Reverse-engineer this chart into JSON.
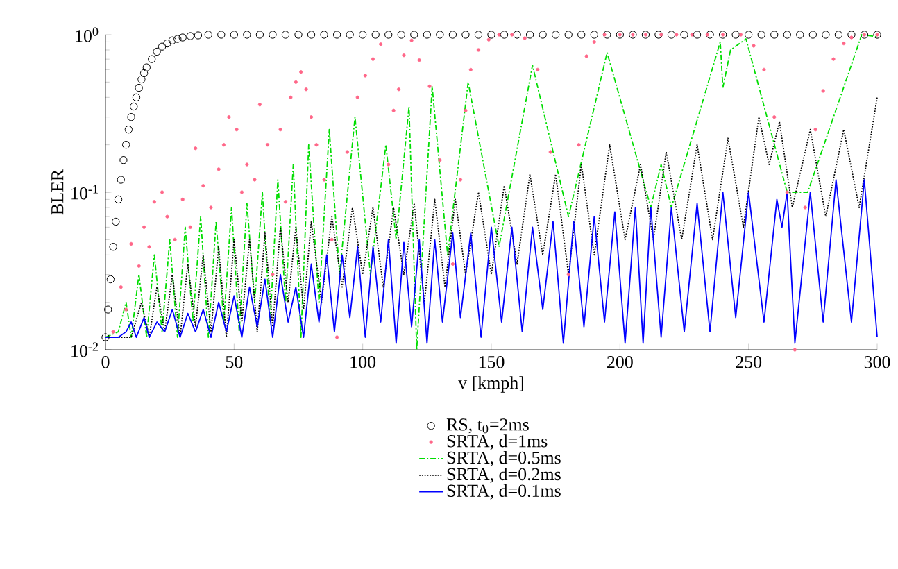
{
  "chart_data": {
    "type": "line",
    "xlabel": "v [kmph]",
    "ylabel": "BLER",
    "log": "y",
    "legend": "bottom",
    "xlim": [
      0,
      300
    ],
    "ylim": [
      0.01,
      1
    ],
    "xticks": [
      0,
      50,
      100,
      150,
      200,
      250,
      300
    ],
    "yticks": [
      {
        "value": 0.01,
        "label": "10$^{-2}$"
      },
      {
        "value": 0.1,
        "label": "10$^{-1}$"
      },
      {
        "value": 1,
        "label": "10$^{0}$"
      }
    ],
    "series": [
      {
        "name": "RS, t$_{0}$=2ms",
        "type": "scatter",
        "marker": "circle",
        "color": "#000000",
        "x": [
          0,
          1,
          2,
          3,
          4,
          5,
          6,
          7,
          8,
          9,
          10,
          11,
          12,
          13,
          14,
          15,
          16,
          18,
          20,
          22,
          24,
          26,
          28,
          30,
          33,
          36,
          40,
          45,
          50,
          55,
          60,
          65,
          70,
          75,
          80,
          85,
          90,
          95,
          100,
          105,
          110,
          115,
          120,
          125,
          130,
          135,
          140,
          145,
          150,
          155,
          160,
          165,
          170,
          175,
          180,
          185,
          190,
          195,
          200,
          205,
          210,
          215,
          220,
          225,
          230,
          235,
          240,
          245,
          250,
          255,
          260,
          265,
          270,
          275,
          280,
          285,
          290,
          295,
          300
        ],
        "values": [
          0.012,
          0.018,
          0.028,
          0.045,
          0.065,
          0.09,
          0.12,
          0.16,
          0.2,
          0.25,
          0.3,
          0.35,
          0.4,
          0.46,
          0.52,
          0.57,
          0.62,
          0.7,
          0.78,
          0.84,
          0.88,
          0.92,
          0.94,
          0.96,
          0.98,
          0.99,
          1,
          1,
          1,
          1,
          1,
          1,
          1,
          1,
          1,
          1,
          1,
          1,
          1,
          1,
          1,
          1,
          1,
          1,
          1,
          1,
          1,
          1,
          1,
          1,
          1,
          1,
          1,
          1,
          1,
          1,
          1,
          1,
          1,
          1,
          1,
          1,
          1,
          1,
          1,
          1,
          1,
          1,
          1,
          1,
          1,
          1,
          1,
          1,
          1,
          1,
          1,
          1,
          1
        ]
      },
      {
        "name": "SRTA, d=1ms",
        "type": "scatter",
        "marker": "dot",
        "color": "#ff6688",
        "x": [
          3,
          6,
          8,
          10,
          13,
          15,
          17,
          19,
          22,
          24,
          27,
          30,
          33,
          35,
          38,
          41,
          44,
          46,
          48,
          51,
          53,
          55,
          58,
          60,
          63,
          65,
          68,
          70,
          72,
          74,
          76,
          78,
          80,
          82,
          85,
          88,
          90,
          94,
          98,
          101,
          104,
          107,
          110,
          112,
          114,
          116,
          119,
          122,
          126,
          130,
          135,
          138,
          140,
          142,
          145,
          149,
          153,
          158,
          163,
          168,
          173,
          180,
          184,
          187,
          190,
          194,
          200,
          205,
          210,
          216,
          222,
          228,
          234,
          240,
          247,
          252,
          256,
          260,
          265,
          268,
          272,
          276,
          279,
          283,
          287,
          290,
          295,
          300
        ],
        "values": [
          0.013,
          0.025,
          0.018,
          0.047,
          0.034,
          0.06,
          0.045,
          0.087,
          0.1,
          0.07,
          0.05,
          0.09,
          0.06,
          0.19,
          0.11,
          0.08,
          0.14,
          0.2,
          0.3,
          0.25,
          0.1,
          0.15,
          0.12,
          0.36,
          0.2,
          0.03,
          0.25,
          0.087,
          0.4,
          0.5,
          0.58,
          0.45,
          0.3,
          0.2,
          0.12,
          0.05,
          0.012,
          0.18,
          0.4,
          0.55,
          0.7,
          0.87,
          0.15,
          0.33,
          0.45,
          0.74,
          0.92,
          0.69,
          0.47,
          0.16,
          0.035,
          0.12,
          0.33,
          0.6,
          0.8,
          0.93,
          1,
          1,
          0.95,
          0.6,
          0.18,
          0.03,
          0.2,
          0.73,
          0.9,
          1,
          1,
          1,
          1,
          1,
          1,
          1,
          1,
          1,
          1,
          0.85,
          0.6,
          0.3,
          0.1,
          0.01,
          0.08,
          0.25,
          0.44,
          0.7,
          0.88,
          0.96,
          1,
          1
        ]
      },
      {
        "name": "SRTA, d=0.5ms",
        "line_style": "dashdot",
        "color": "#00dd00",
        "x": [
          0,
          5,
          8,
          10,
          13,
          16,
          19,
          22,
          25,
          28,
          31,
          34,
          37,
          40,
          43,
          46,
          49,
          52,
          55,
          58,
          61,
          64,
          67,
          70,
          73,
          76,
          79,
          83,
          87,
          91,
          97,
          103,
          109,
          113,
          118,
          121,
          127,
          133,
          141,
          153,
          166,
          180,
          195,
          212,
          216,
          220,
          239,
          240,
          243,
          249,
          265,
          273,
          294,
          300
        ],
        "values": [
          0.012,
          0.013,
          0.02,
          0.012,
          0.03,
          0.012,
          0.04,
          0.013,
          0.05,
          0.012,
          0.06,
          0.015,
          0.07,
          0.012,
          0.065,
          0.015,
          0.08,
          0.013,
          0.085,
          0.02,
          0.1,
          0.015,
          0.12,
          0.02,
          0.15,
          0.012,
          0.2,
          0.02,
          0.25,
          0.03,
          0.3,
          0.03,
          0.2,
          0.05,
          0.35,
          0.01,
          0.47,
          0.04,
          0.5,
          0.045,
          0.64,
          0.07,
          0.77,
          0.08,
          0.15,
          0.08,
          0.9,
          0.46,
          0.8,
          0.94,
          0.1,
          0.1,
          1,
          0.97
        ]
      },
      {
        "name": "SRTA, d=0.2ms",
        "line_style": "dotted",
        "color": "#000000",
        "x": [
          0,
          10,
          14,
          17,
          20,
          23,
          26,
          29,
          32,
          35,
          38,
          41,
          44,
          47,
          50,
          53,
          56,
          59,
          62,
          65,
          68,
          71,
          74,
          77,
          80,
          84,
          88,
          92,
          96,
          100,
          104,
          108,
          112,
          116,
          120,
          124,
          128,
          132,
          136,
          140,
          145,
          150,
          155,
          160,
          165,
          170,
          175,
          180,
          185,
          190,
          196,
          202,
          208,
          213,
          218,
          224,
          230,
          236,
          242,
          248,
          254,
          258,
          262,
          267,
          274,
          280,
          287,
          293,
          300
        ],
        "values": [
          0.012,
          0.012,
          0.02,
          0.012,
          0.025,
          0.013,
          0.03,
          0.012,
          0.035,
          0.014,
          0.04,
          0.013,
          0.045,
          0.012,
          0.05,
          0.015,
          0.05,
          0.013,
          0.055,
          0.014,
          0.06,
          0.02,
          0.06,
          0.018,
          0.065,
          0.02,
          0.07,
          0.025,
          0.08,
          0.03,
          0.08,
          0.025,
          0.08,
          0.03,
          0.085,
          0.02,
          0.09,
          0.025,
          0.09,
          0.03,
          0.1,
          0.03,
          0.11,
          0.035,
          0.13,
          0.04,
          0.13,
          0.03,
          0.15,
          0.04,
          0.2,
          0.05,
          0.15,
          0.05,
          0.18,
          0.05,
          0.2,
          0.05,
          0.22,
          0.06,
          0.3,
          0.15,
          0.28,
          0.08,
          0.25,
          0.07,
          0.25,
          0.08,
          0.4
        ]
      },
      {
        "name": "SRTA, d=0.1ms",
        "line_style": "solid",
        "color": "#0000ff",
        "x": [
          0,
          5,
          8,
          10,
          12,
          15,
          17,
          20,
          23,
          26,
          29,
          32,
          35,
          38,
          41,
          44,
          47,
          50,
          53,
          56,
          59,
          62,
          65,
          68,
          71,
          74,
          77,
          80,
          83,
          86,
          89,
          92,
          95,
          98,
          101,
          104,
          107,
          110,
          113,
          116,
          119,
          122,
          125,
          128,
          131,
          135,
          138,
          142,
          146,
          150,
          154,
          158,
          162,
          166,
          170,
          174,
          178,
          182,
          186,
          190,
          194,
          198,
          202,
          206,
          209,
          212,
          216,
          220,
          225,
          230,
          235,
          240,
          245,
          250,
          256,
          261,
          263,
          265,
          268,
          274,
          279,
          284,
          290,
          295,
          300
        ],
        "values": [
          0.012,
          0.012,
          0.013,
          0.015,
          0.012,
          0.016,
          0.012,
          0.015,
          0.013,
          0.018,
          0.012,
          0.017,
          0.013,
          0.018,
          0.012,
          0.02,
          0.013,
          0.022,
          0.012,
          0.025,
          0.014,
          0.028,
          0.012,
          0.03,
          0.015,
          0.025,
          0.012,
          0.035,
          0.015,
          0.04,
          0.013,
          0.04,
          0.016,
          0.045,
          0.012,
          0.045,
          0.015,
          0.05,
          0.011,
          0.048,
          0.014,
          0.05,
          0.011,
          0.05,
          0.015,
          0.055,
          0.016,
          0.055,
          0.012,
          0.06,
          0.015,
          0.06,
          0.013,
          0.06,
          0.018,
          0.065,
          0.011,
          0.065,
          0.014,
          0.07,
          0.015,
          0.075,
          0.011,
          0.08,
          0.011,
          0.08,
          0.012,
          0.08,
          0.013,
          0.085,
          0.013,
          0.1,
          0.016,
          0.1,
          0.015,
          0.09,
          0.06,
          0.1,
          0.011,
          0.1,
          0.015,
          0.12,
          0.015,
          0.12,
          0.012
        ]
      }
    ]
  }
}
